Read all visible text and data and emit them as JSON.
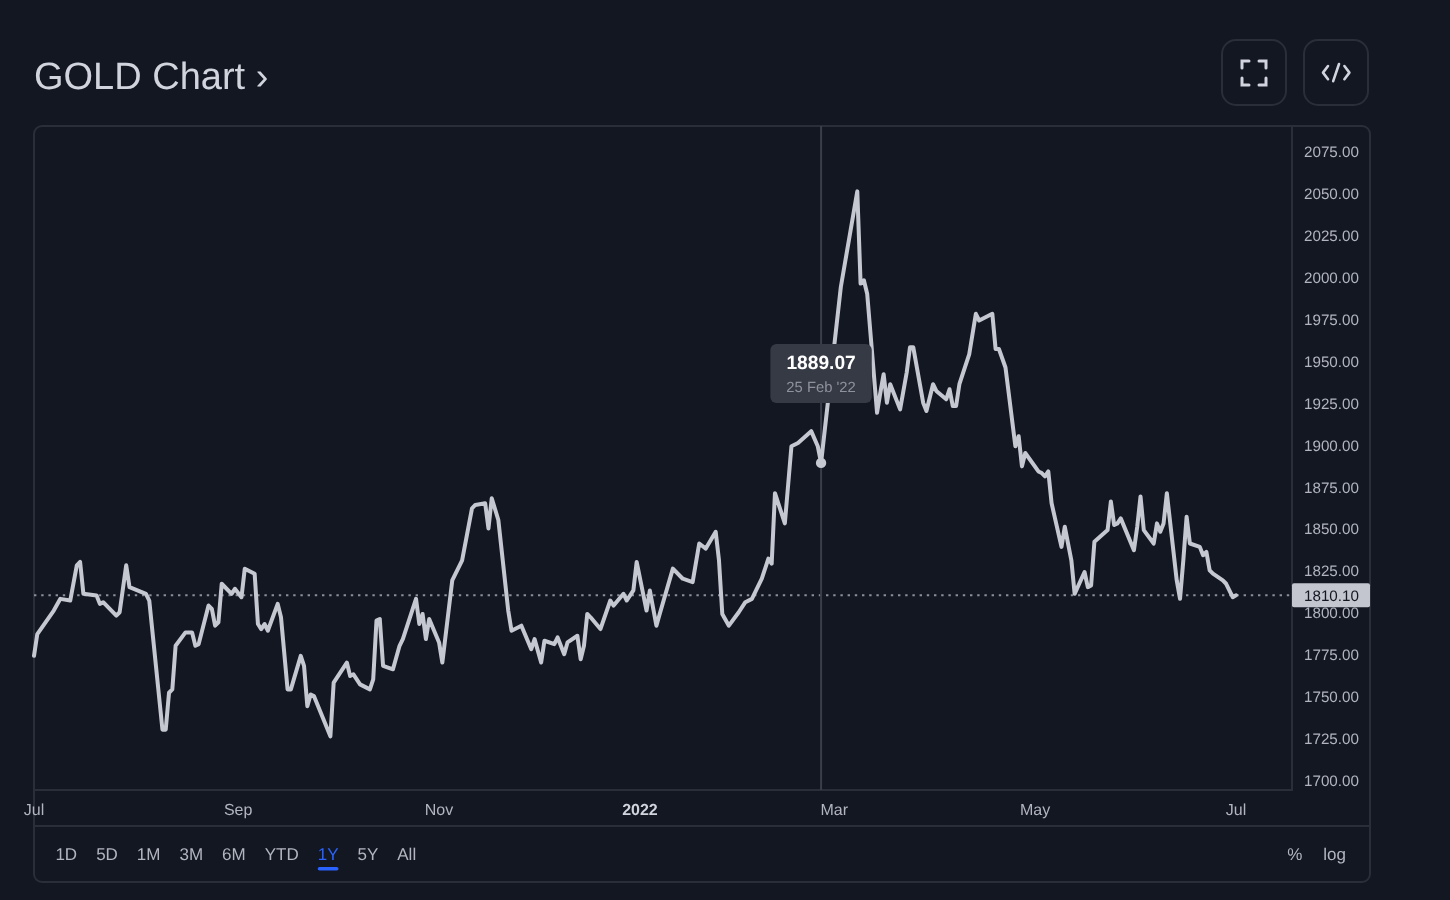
{
  "chart_data": {
    "type": "line",
    "title": "GOLD Chart ›",
    "x": [
      "2021-07-01",
      "2021-07-02",
      "2021-07-07",
      "2021-07-09",
      "2021-07-12",
      "2021-07-14",
      "2021-07-15",
      "2021-07-16",
      "2021-07-20",
      "2021-07-21",
      "2021-07-22",
      "2021-07-26",
      "2021-07-27",
      "2021-07-29",
      "2021-07-30",
      "2021-08-04",
      "2021-08-05",
      "2021-08-09",
      "2021-08-10",
      "2021-08-11",
      "2021-08-12",
      "2021-08-13",
      "2021-08-16",
      "2021-08-18",
      "2021-08-19",
      "2021-08-20",
      "2021-08-23",
      "2021-08-24",
      "2021-08-25",
      "2021-08-26",
      "2021-08-27",
      "2021-08-30",
      "2021-08-31",
      "2021-09-02",
      "2021-09-03",
      "2021-09-06",
      "2021-09-07",
      "2021-09-08",
      "2021-09-09",
      "2021-09-10",
      "2021-09-13",
      "2021-09-14",
      "2021-09-16",
      "2021-09-17",
      "2021-09-20",
      "2021-09-21",
      "2021-09-22",
      "2021-09-23",
      "2021-09-24",
      "2021-09-29",
      "2021-09-30",
      "2021-10-04",
      "2021-10-05",
      "2021-10-06",
      "2021-10-08",
      "2021-10-11",
      "2021-10-12",
      "2021-10-13",
      "2021-10-14",
      "2021-10-15",
      "2021-10-18",
      "2021-10-20",
      "2021-10-21",
      "2021-10-25",
      "2021-10-26",
      "2021-10-27",
      "2021-10-28",
      "2021-10-29",
      "2021-11-01",
      "2021-11-02",
      "2021-11-05",
      "2021-11-08",
      "2021-11-11",
      "2021-11-12",
      "2021-11-15",
      "2021-11-16",
      "2021-11-17",
      "2021-11-19",
      "2021-11-22",
      "2021-11-23",
      "2021-11-26",
      "2021-11-29",
      "2021-11-30",
      "2021-12-02",
      "2021-12-03",
      "2021-12-06",
      "2021-12-07",
      "2021-12-09",
      "2021-12-10",
      "2021-12-13",
      "2021-12-14",
      "2021-12-15",
      "2021-12-16",
      "2021-12-17",
      "2021-12-20",
      "2021-12-23",
      "2021-12-24",
      "2021-12-27",
      "2021-12-28",
      "2021-12-30",
      "2021-12-31",
      "2022-01-03",
      "2022-01-04",
      "2022-01-06",
      "2022-01-07",
      "2022-01-11",
      "2022-01-14",
      "2022-01-17",
      "2022-01-19",
      "2022-01-21",
      "2022-01-24",
      "2022-01-25",
      "2022-01-26",
      "2022-01-28",
      "2022-01-31",
      "2022-02-02",
      "2022-02-04",
      "2022-02-07",
      "2022-02-09",
      "2022-02-10",
      "2022-02-11",
      "2022-02-14",
      "2022-02-16",
      "2022-02-18",
      "2022-02-22",
      "2022-02-24",
      "2022-02-25",
      "2022-03-03",
      "2022-03-08",
      "2022-03-09",
      "2022-03-10",
      "2022-03-11",
      "2022-03-14",
      "2022-03-15",
      "2022-03-16",
      "2022-03-17",
      "2022-03-18",
      "2022-03-21",
      "2022-03-23",
      "2022-03-24",
      "2022-03-25",
      "2022-03-28",
      "2022-03-29",
      "2022-03-31",
      "2022-04-01",
      "2022-04-04",
      "2022-04-05",
      "2022-04-06",
      "2022-04-07",
      "2022-04-08",
      "2022-04-11",
      "2022-04-13",
      "2022-04-14",
      "2022-04-18",
      "2022-04-19",
      "2022-04-20",
      "2022-04-22",
      "2022-04-25",
      "2022-04-26",
      "2022-04-27",
      "2022-04-28",
      "2022-05-02",
      "2022-05-03",
      "2022-05-04",
      "2022-05-05",
      "2022-05-06",
      "2022-05-09",
      "2022-05-10",
      "2022-05-12",
      "2022-05-13",
      "2022-05-16",
      "2022-05-17",
      "2022-05-18",
      "2022-05-19",
      "2022-05-23",
      "2022-05-24",
      "2022-05-25",
      "2022-05-26",
      "2022-05-27",
      "2022-05-31",
      "2022-06-01",
      "2022-06-02",
      "2022-06-03",
      "2022-06-06",
      "2022-06-07",
      "2022-06-08",
      "2022-06-09",
      "2022-06-10",
      "2022-06-13",
      "2022-06-14",
      "2022-06-15",
      "2022-06-16",
      "2022-06-17",
      "2022-06-20",
      "2022-06-21",
      "2022-06-22",
      "2022-06-23",
      "2022-06-24",
      "2022-06-27",
      "2022-06-28",
      "2022-06-30",
      "2022-07-01"
    ],
    "series": [
      {
        "color": "#c5c8d0",
        "values": [
          1774,
          1787,
          1801,
          1808,
          1807,
          1828,
          1830,
          1811,
          1810,
          1805,
          1806,
          1798,
          1800,
          1828,
          1815,
          1811,
          1807,
          1730,
          1730,
          1752,
          1754,
          1780,
          1788,
          1788,
          1780,
          1781,
          1804,
          1802,
          1792,
          1794,
          1817,
          1811,
          1814,
          1809,
          1826,
          1823,
          1793,
          1790,
          1793,
          1789,
          1805,
          1797,
          1754,
          1754,
          1774,
          1768,
          1744,
          1751,
          1750,
          1726,
          1758,
          1770,
          1762,
          1763,
          1757,
          1754,
          1760,
          1795,
          1796,
          1768,
          1766,
          1780,
          1784,
          1808,
          1793,
          1799,
          1784,
          1796,
          1782,
          1770,
          1819,
          1831,
          1862,
          1864,
          1865,
          1850,
          1868,
          1855,
          1801,
          1789,
          1792,
          1778,
          1784,
          1770,
          1783,
          1781,
          1785,
          1775,
          1782,
          1786,
          1772,
          1780,
          1799,
          1797,
          1790,
          1807,
          1804,
          1811,
          1807,
          1813,
          1830,
          1801,
          1813,
          1792,
          1799,
          1826,
          1820,
          1818,
          1841,
          1838,
          1848,
          1831,
          1799,
          1792,
          1800,
          1806,
          1808,
          1820,
          1832,
          1829,
          1871,
          1853,
          1899,
          1901,
          1908,
          1899,
          1889.07,
          1994,
          2051,
          1996,
          1998,
          1990,
          1919,
          1931,
          1942,
          1925,
          1936,
          1921,
          1943,
          1958,
          1958,
          1925,
          1920,
          1936,
          1932,
          1927,
          1933,
          1923,
          1923,
          1936,
          1954,
          1978,
          1974,
          1978,
          1957,
          1957,
          1946,
          1899,
          1905,
          1887,
          1895,
          1884,
          1883,
          1881,
          1884,
          1865,
          1839,
          1851,
          1831,
          1811,
          1824,
          1815,
          1816,
          1842,
          1849,
          1866,
          1852,
          1853,
          1856,
          1837,
          1851,
          1869,
          1849,
          1841,
          1853,
          1848,
          1853,
          1871,
          1819,
          1808,
          1831,
          1857,
          1841,
          1839,
          1834,
          1836,
          1825,
          1823,
          1819,
          1817,
          1809,
          1810.1
        ]
      },
      {
        "type": "scatter",
        "x": [
          "2022-02-25"
        ],
        "values": [
          1889.07
        ],
        "color": "#c5c8d0",
        "marker": "circle"
      }
    ],
    "xlim": [
      "2021-07-01",
      "2022-07-18"
    ],
    "xticks": [
      {
        "value": "2021-07-01",
        "label": "Jul"
      },
      {
        "value": "2021-09-01",
        "label": "Sep"
      },
      {
        "value": "2021-11-01",
        "label": "Nov"
      },
      {
        "value": "2022-01-01",
        "label": "2022"
      },
      {
        "value": "2022-03-01",
        "label": "Mar"
      },
      {
        "value": "2022-05-01",
        "label": "May"
      },
      {
        "value": "2022-07-01",
        "label": "Jul"
      }
    ],
    "ylim": [
      1694,
      2090
    ],
    "yticks": [
      {
        "value": 1700,
        "label": "1700.00"
      },
      {
        "value": 1725,
        "label": "1725.00"
      },
      {
        "value": 1750,
        "label": "1750.00"
      },
      {
        "value": 1775,
        "label": "1775.00"
      },
      {
        "value": 1800,
        "label": "1800.00"
      },
      {
        "value": 1825,
        "label": "1825.00"
      },
      {
        "value": 1850,
        "label": "1850.00"
      },
      {
        "value": 1875,
        "label": "1875.00"
      },
      {
        "value": 1900,
        "label": "1900.00"
      },
      {
        "value": 1925,
        "label": "1925.00"
      },
      {
        "value": 1950,
        "label": "1950.00"
      },
      {
        "value": 1975,
        "label": "1975.00"
      },
      {
        "value": 2000,
        "label": "2000.00"
      },
      {
        "value": 2025,
        "label": "2025.00"
      },
      {
        "value": 2050,
        "label": "2050.00"
      },
      {
        "value": 2075,
        "label": "2075.00"
      }
    ],
    "ref_lines": [
      {
        "axis": "y",
        "value": 1810.1,
        "label": "1810.10",
        "line_style": "dotted",
        "color": "#8c8f99"
      },
      {
        "axis": "x",
        "value": "2022-02-25",
        "color": "#3a3e4a"
      }
    ],
    "annotations": [
      "1889.07",
      "25 Feb '22",
      "1D",
      "5D",
      "1M",
      "3M",
      "6M",
      "YTD",
      "1Y",
      "5Y",
      "All",
      "%",
      "log"
    ]
  }
}
